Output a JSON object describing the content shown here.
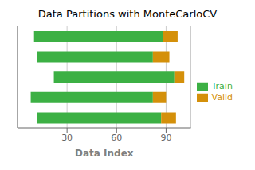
{
  "chart_data": {
    "type": "bar",
    "orientation": "horizontal",
    "title": "Data Partitions with MonteCarloCV",
    "x_label": "Data Index",
    "categories": [
      null,
      null,
      null,
      null,
      null
    ],
    "series": [
      {
        "name": "Train",
        "color": "#3cb044",
        "values": [
          [
            10,
            88
          ],
          [
            12,
            82
          ],
          [
            22,
            95
          ],
          [
            8,
            82
          ],
          [
            12,
            87
          ]
        ]
      },
      {
        "name": "Valid",
        "color": "#d4900a",
        "values": [
          [
            88,
            97
          ],
          [
            82,
            92
          ],
          [
            95,
            101
          ],
          [
            82,
            90
          ],
          [
            87,
            96
          ]
        ]
      }
    ],
    "xlim": [
      0,
      105
    ],
    "xticks": [
      30,
      60,
      90
    ],
    "grid": true,
    "legend": "right",
    "tick_labels": "x"
  }
}
